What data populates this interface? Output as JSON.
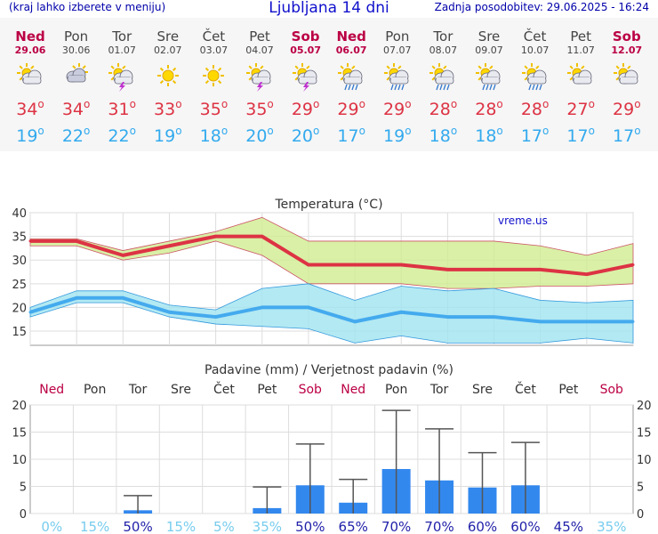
{
  "header": {
    "left": "(kraj lahko izberete v meniju)",
    "title": "Ljubljana 14 dni",
    "right": "Zadnja posodobitev: 29.06.2025 - 16:24"
  },
  "days": [
    {
      "name": "Ned",
      "date": "29.06",
      "weekend": true,
      "icon": "sun-cloud-icon",
      "tmax": 34,
      "tmin": 19
    },
    {
      "name": "Pon",
      "date": "30.06",
      "weekend": false,
      "icon": "cloudy-icon",
      "tmax": 34,
      "tmin": 22
    },
    {
      "name": "Tor",
      "date": "01.07",
      "weekend": false,
      "icon": "sun-storm-icon",
      "tmax": 31,
      "tmin": 22
    },
    {
      "name": "Sre",
      "date": "02.07",
      "weekend": false,
      "icon": "sun-icon",
      "tmax": 33,
      "tmin": 19
    },
    {
      "name": "Čet",
      "date": "03.07",
      "weekend": false,
      "icon": "sun-icon",
      "tmax": 35,
      "tmin": 18
    },
    {
      "name": "Pet",
      "date": "04.07",
      "weekend": false,
      "icon": "sun-storm-icon",
      "tmax": 35,
      "tmin": 20
    },
    {
      "name": "Sob",
      "date": "05.07",
      "weekend": true,
      "icon": "sun-storm-icon",
      "tmax": 29,
      "tmin": 20
    },
    {
      "name": "Ned",
      "date": "06.07",
      "weekend": true,
      "icon": "sun-rain-icon",
      "tmax": 29,
      "tmin": 17
    },
    {
      "name": "Pon",
      "date": "07.07",
      "weekend": false,
      "icon": "sun-rain-icon",
      "tmax": 29,
      "tmin": 19
    },
    {
      "name": "Tor",
      "date": "08.07",
      "weekend": false,
      "icon": "sun-rain-icon",
      "tmax": 28,
      "tmin": 18
    },
    {
      "name": "Sre",
      "date": "09.07",
      "weekend": false,
      "icon": "sun-rain-icon",
      "tmax": 28,
      "tmin": 18
    },
    {
      "name": "Čet",
      "date": "10.07",
      "weekend": false,
      "icon": "sun-rain-icon",
      "tmax": 28,
      "tmin": 17
    },
    {
      "name": "Pet",
      "date": "11.07",
      "weekend": false,
      "icon": "sun-cloud-icon",
      "tmax": 27,
      "tmin": 17
    },
    {
      "name": "Sob",
      "date": "12.07",
      "weekend": true,
      "icon": "sun-cloud-icon",
      "tmax": 29,
      "tmin": 17
    }
  ],
  "chart_data": [
    {
      "type": "line",
      "title": "Temperatura (°C)",
      "watermark": "vreme.us",
      "ylim": [
        12,
        40
      ],
      "yticks": [
        15,
        20,
        25,
        30,
        35,
        40
      ],
      "x": [
        0,
        1,
        2,
        3,
        4,
        5,
        6,
        7,
        8,
        9,
        10,
        11,
        12,
        13
      ],
      "grid": true,
      "series": [
        {
          "role": "max",
          "color": "#dd3344",
          "values": [
            34,
            34,
            31,
            33,
            35,
            35,
            29,
            29,
            29,
            28,
            28,
            28,
            27,
            29
          ],
          "band_high": [
            34.5,
            34.5,
            32,
            34,
            36,
            39,
            34,
            34,
            34,
            34,
            34,
            33,
            31,
            33.5
          ],
          "band_low": [
            33,
            33,
            30,
            31.5,
            34,
            31,
            25,
            25,
            25,
            24,
            24,
            24.5,
            24.5,
            25
          ],
          "band_color": "#d0ec90"
        },
        {
          "role": "min",
          "color": "#44aaee",
          "values": [
            19,
            22,
            22,
            19,
            18,
            20,
            20,
            17,
            19,
            18,
            18,
            17,
            17,
            17
          ],
          "band_high": [
            20,
            23.5,
            23.5,
            20.5,
            19.5,
            24,
            25,
            21.5,
            24.5,
            23.5,
            24,
            21.5,
            21,
            21.5
          ],
          "band_low": [
            18,
            21,
            21,
            18,
            16.5,
            16,
            15.5,
            12.5,
            14,
            12.5,
            12.5,
            12.5,
            13.5,
            12.5
          ],
          "band_color": "#a0e4f0"
        }
      ]
    },
    {
      "type": "bar",
      "title": "Padavine (mm) / Verjetnost padavin (%)",
      "categories": [
        "Ned",
        "Pon",
        "Tor",
        "Sre",
        "Čet",
        "Pet",
        "Sob",
        "Ned",
        "Pon",
        "Tor",
        "Sre",
        "Čet",
        "Pet",
        "Sob"
      ],
      "weekend": [
        true,
        false,
        false,
        false,
        false,
        false,
        true,
        true,
        false,
        false,
        false,
        false,
        false,
        true
      ],
      "values": [
        0,
        0,
        0.6,
        0,
        0,
        1.0,
        5.2,
        2.0,
        8.2,
        6.1,
        4.8,
        5.2,
        0,
        0
      ],
      "error_high": [
        0,
        0,
        3.3,
        0,
        0,
        4.9,
        12.8,
        6.3,
        19.0,
        15.6,
        11.2,
        13.1,
        0,
        0
      ],
      "probabilities": [
        "0%",
        "15%",
        "50%",
        "15%",
        "5%",
        "35%",
        "50%",
        "65%",
        "70%",
        "70%",
        "60%",
        "60%",
        "45%",
        "35%"
      ],
      "probability_values": [
        0,
        15,
        50,
        15,
        5,
        35,
        50,
        65,
        70,
        70,
        60,
        60,
        45,
        35
      ],
      "ylim": [
        0,
        20
      ],
      "yticks": [
        0,
        5,
        10,
        15,
        20
      ],
      "bar_color": "#3388ee",
      "grid": true
    }
  ]
}
